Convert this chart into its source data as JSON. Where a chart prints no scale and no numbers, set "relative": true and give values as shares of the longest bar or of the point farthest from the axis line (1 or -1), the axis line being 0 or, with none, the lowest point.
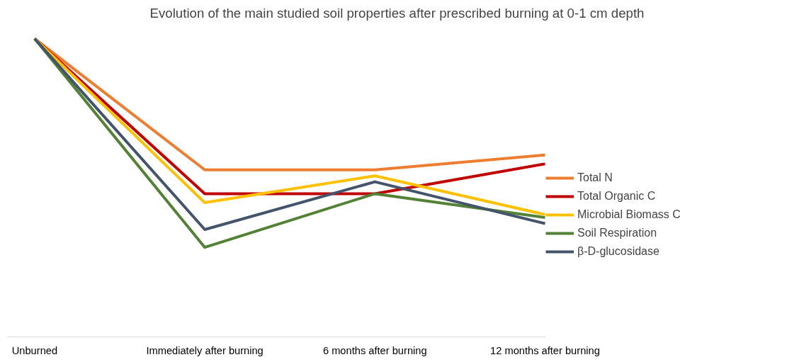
{
  "chart_data": {
    "type": "line",
    "title": "Evolution of the main studied soil properties after prescribed burning at 0-1 cm depth",
    "categories": [
      "Unburned",
      "Immediately after burning",
      "6 months after burning",
      "12 months after burning"
    ],
    "relative": true,
    "legend": "right",
    "grid": false,
    "marker": "none",
    "line_style": "solid",
    "series": [
      {
        "name": "Total N",
        "color": "#ed7d31",
        "values": [
          1,
          0.56,
          0.56,
          0.61
        ]
      },
      {
        "name": "Total Organic C",
        "color": "#c00000",
        "values": [
          1,
          0.48,
          0.48,
          0.58
        ]
      },
      {
        "name": "Microbial Biomass C",
        "color": "#ffc000",
        "values": [
          1,
          0.45,
          0.54,
          0.41
        ]
      },
      {
        "name": "Soil Respiration",
        "color": "#538135",
        "values": [
          1,
          0.3,
          0.48,
          0.4
        ]
      },
      {
        "name": "β-D-glucosidase",
        "color": "#44546a",
        "values": [
          1,
          0.36,
          0.52,
          0.38
        ]
      }
    ]
  }
}
